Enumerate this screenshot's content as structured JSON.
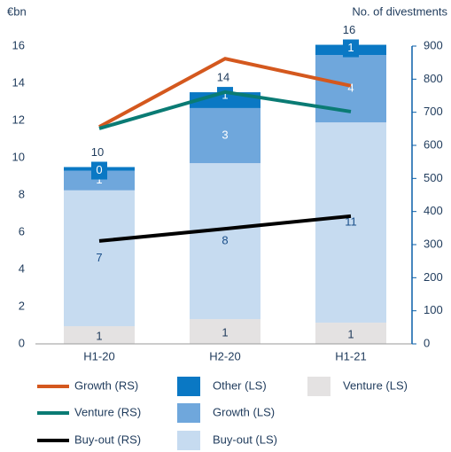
{
  "chart_data": {
    "type": "bar",
    "ylabel": "€bn",
    "y2label": "No. of divestments",
    "categories": [
      "H1-20",
      "H2-20",
      "H1-21"
    ],
    "ylim": [
      0,
      16
    ],
    "yticks": [
      0,
      2,
      4,
      6,
      8,
      10,
      12,
      14,
      16
    ],
    "y2lim": [
      0,
      900
    ],
    "y2ticks": [
      0,
      100,
      200,
      300,
      400,
      500,
      600,
      700,
      800,
      900
    ],
    "series": [
      {
        "name": "Venture (LS)",
        "type": "bar",
        "color": "#e4e2e2",
        "label_color": "#1f3b5c",
        "values": [
          0.95,
          1.33,
          1.14
        ],
        "value_labels": [
          "1",
          "1",
          "1"
        ]
      },
      {
        "name": "Buy-out (LS)",
        "type": "bar",
        "color": "#c6dbf0",
        "label_color": "#1a4f8a",
        "values": [
          7.3,
          8.38,
          10.76
        ],
        "value_labels": [
          "7",
          "8",
          "11"
        ]
      },
      {
        "name": "Growth (LS)",
        "type": "bar",
        "color": "#6fa7dc",
        "label_color": "#ffffff",
        "values": [
          1.05,
          2.96,
          3.62
        ],
        "value_labels": [
          "1",
          "3",
          "4"
        ]
      },
      {
        "name": "Other (LS)",
        "type": "bar",
        "color": "#0a78c4",
        "label_color": "#ffffff",
        "values": [
          0.2,
          0.85,
          0.55
        ],
        "value_labels": [
          "0",
          "1",
          "1"
        ]
      },
      {
        "name": "Growth (RS)",
        "type": "line",
        "axis": "y2",
        "color": "#d4581e",
        "values": [
          656,
          862,
          780
        ]
      },
      {
        "name": "Venture (RS)",
        "type": "line",
        "axis": "y2",
        "color": "#0a7b74",
        "values": [
          651,
          761,
          702
        ]
      },
      {
        "name": "Buy-out (RS)",
        "type": "line",
        "axis": "y2",
        "color": "#000000",
        "values": [
          311,
          348,
          386
        ]
      }
    ],
    "totals": [
      9.5,
      13.52,
      16.07
    ],
    "totals_labels": [
      "10",
      "14",
      "16"
    ]
  }
}
